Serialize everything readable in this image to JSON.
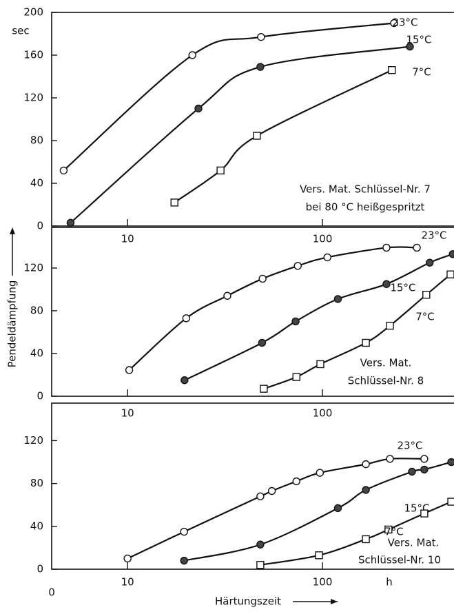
{
  "chart_data": [
    {
      "type": "line",
      "log_x": true,
      "xlim": [
        4.08,
        473
      ],
      "xticks": [
        10,
        100
      ],
      "ylim": [
        0,
        200
      ],
      "yticks": [
        0,
        40,
        80,
        120,
        160,
        200
      ],
      "y_unit_label": "sec",
      "annotations": [
        "Vers. Mat. Schlüssel-Nr. 7",
        "bei 80 °C heißgespritzt"
      ],
      "series": [
        {
          "name": "23°C",
          "color": "#111111",
          "marker": "open-circle",
          "x": [
            4.7,
            21.5,
            48.4,
            233
          ],
          "values": [
            52,
            160,
            177,
            190
          ]
        },
        {
          "name": "15°C",
          "color": "#111111",
          "marker": "filled-circle",
          "x": [
            5.1,
            23.1,
            48,
            281
          ],
          "values": [
            3,
            110,
            149,
            168
          ]
        },
        {
          "name": "7°C",
          "color": "#111111",
          "marker": "open-square",
          "x": [
            17.4,
            30,
            46.1,
            227
          ],
          "values": [
            22,
            52,
            84.5,
            146
          ]
        }
      ]
    },
    {
      "type": "line",
      "log_x": true,
      "xlim": [
        4.08,
        473
      ],
      "xticks": [
        10,
        100
      ],
      "ylim": [
        0,
        158
      ],
      "yticks": [
        0,
        40,
        80,
        120
      ],
      "annotations": [
        "Vers. Mat.",
        "Schlüssel-Nr. 8"
      ],
      "series": [
        {
          "name": "23°C",
          "color": "#111111",
          "marker": "open-circle",
          "x": [
            10.2,
            20,
            32.5,
            49.3,
            74.7,
            106,
            213,
            305
          ],
          "values": [
            24.5,
            73,
            94,
            110,
            122,
            130,
            139,
            139
          ]
        },
        {
          "name": "15°C",
          "color": "#111111",
          "marker": "filled-circle",
          "x": [
            19.6,
            49,
            72.8,
            120,
            213,
            355,
            466
          ],
          "values": [
            15,
            50,
            70,
            91,
            105,
            125,
            133
          ]
        },
        {
          "name": "7°C",
          "color": "#111111",
          "marker": "open-square",
          "x": [
            50,
            73.5,
            97.5,
            167,
            222,
            341,
            454
          ],
          "values": [
            7,
            18,
            30,
            50,
            66,
            95,
            114
          ]
        }
      ]
    },
    {
      "type": "line",
      "log_x": true,
      "xlim": [
        4.08,
        473
      ],
      "xticks": [
        10,
        100
      ],
      "ylim": [
        0,
        155
      ],
      "yticks": [
        0,
        40,
        80,
        120
      ],
      "annotations": [
        "Vers. Mat.",
        "Schlüssel-Nr. 10"
      ],
      "series": [
        {
          "name": "23°C",
          "color": "#111111",
          "marker": "open-circle",
          "x": [
            10,
            19.5,
            48,
            55,
            73.5,
            97,
            167,
            222,
            333
          ],
          "values": [
            10,
            35,
            68,
            73,
            82,
            90,
            98,
            103,
            103
          ]
        },
        {
          "name": "15°C",
          "color": "#111111",
          "marker": "filled-circle",
          "x": [
            19.5,
            48,
            120,
            167,
            288,
            333,
            458
          ],
          "values": [
            8,
            23,
            57,
            74,
            91,
            93,
            100
          ]
        },
        {
          "name": "7°C",
          "color": "#111111",
          "marker": "open-square",
          "x": [
            48,
            96,
            167,
            218,
            333,
            458
          ],
          "values": [
            4,
            13,
            28,
            37,
            52,
            63
          ]
        }
      ]
    }
  ],
  "y_axis_label": "Pendeldämpfung",
  "x_axis_label": "Härtungszeit",
  "x_origin_label": "0",
  "x_unit_label": "h"
}
